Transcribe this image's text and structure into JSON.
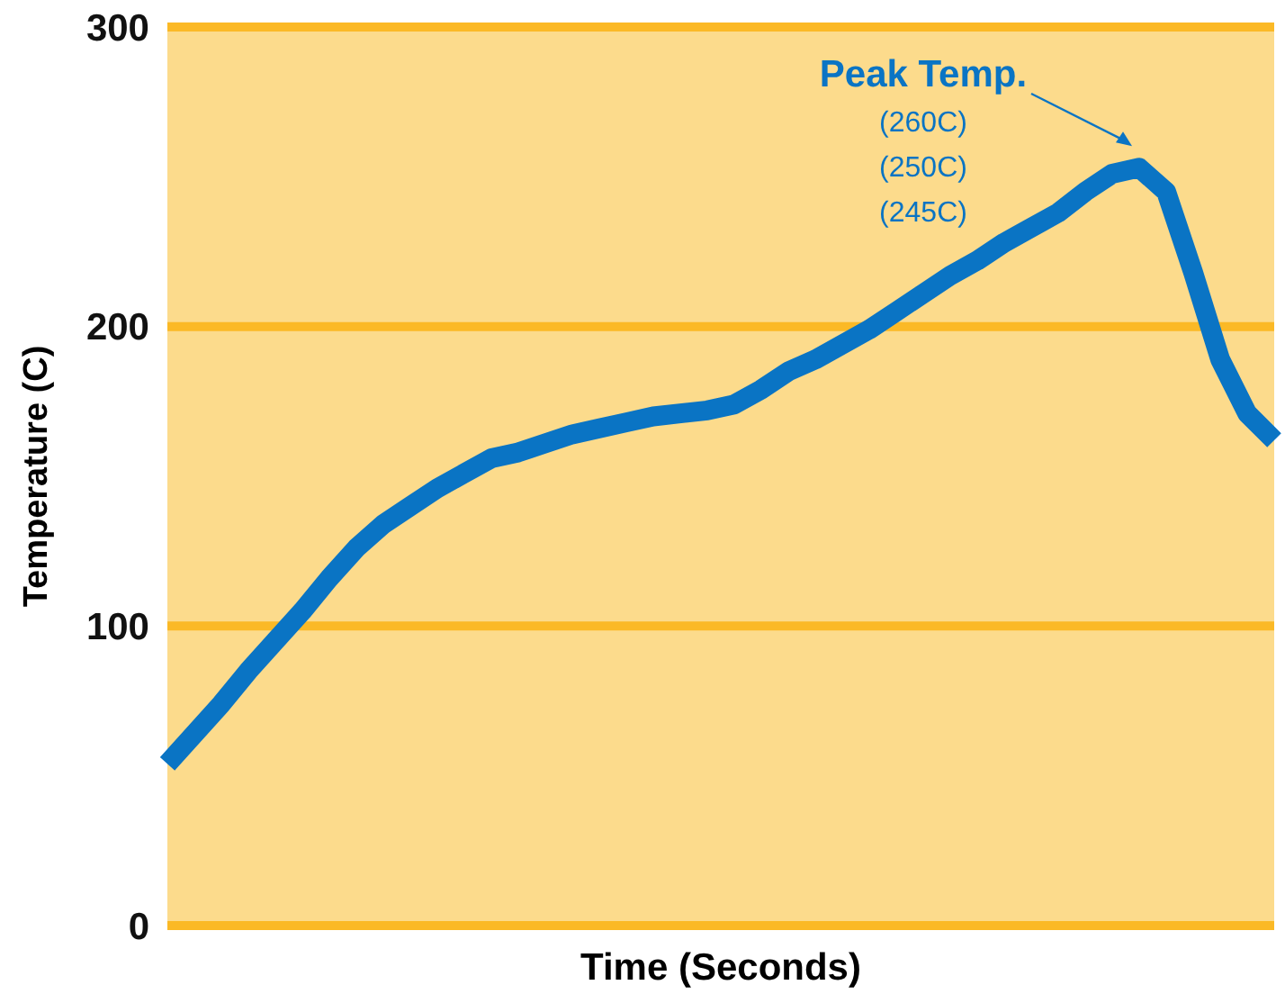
{
  "chart_data": {
    "type": "line",
    "xlabel": "Time (Seconds)",
    "ylabel": "Temperature (C)",
    "categories": [
      null,
      null,
      null,
      null,
      null,
      null,
      null,
      null,
      null,
      null,
      null,
      null,
      null,
      null,
      null,
      null,
      null,
      null,
      null,
      null,
      null,
      null,
      null,
      null,
      null,
      null,
      null,
      null,
      null,
      null,
      null,
      null,
      null,
      null,
      null,
      null,
      null,
      null,
      null,
      null,
      null,
      null
    ],
    "series": [
      {
        "color": "#0a74c4",
        "values": [
          54,
          64,
          74,
          85,
          95,
          105,
          116,
          126,
          134,
          140,
          146,
          151,
          156,
          158,
          161,
          164,
          166,
          168,
          170,
          171,
          172,
          174,
          179,
          185,
          189,
          194,
          199,
          205,
          211,
          217,
          222,
          228,
          233,
          238,
          245,
          251,
          253,
          245,
          218,
          189,
          171,
          162
        ]
      }
    ],
    "ylim": [
      0,
      300
    ],
    "yticks": [
      0,
      100,
      200,
      300
    ],
    "grid": "y",
    "tick_labels": "y",
    "marker": "none",
    "line_style": "solid",
    "annotations": [
      "Peak Temp.",
      "(260C)",
      "(250C)",
      "(245C)"
    ]
  }
}
